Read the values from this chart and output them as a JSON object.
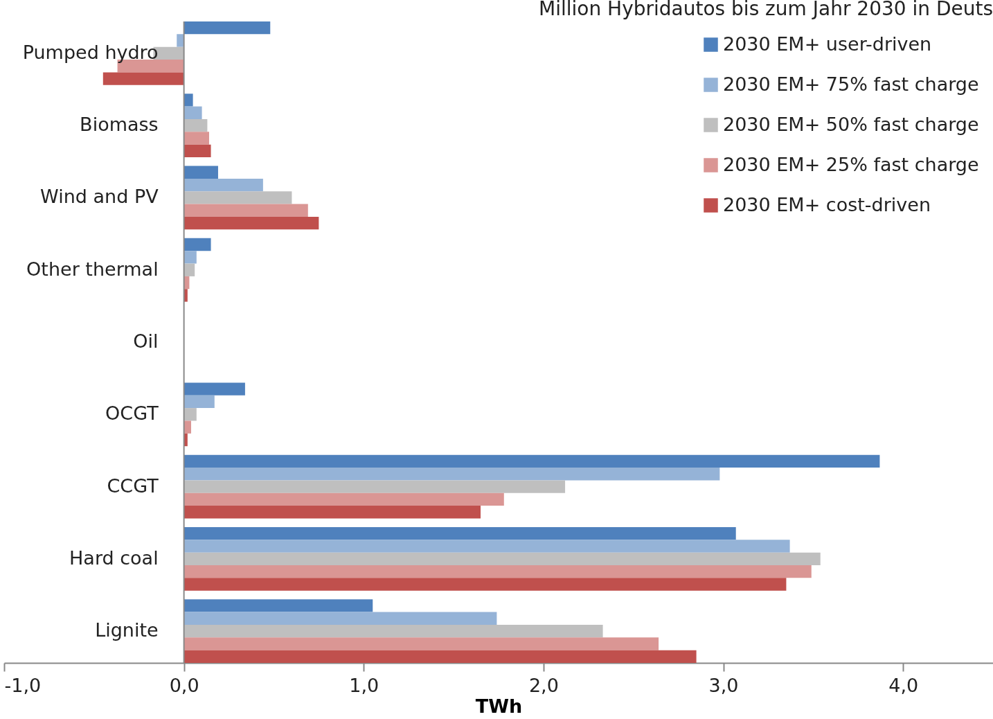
{
  "chart_data": {
    "type": "bar",
    "orientation": "horizontal",
    "title": "Million Hybridautos bis zum Jahr 2030 in Deuts",
    "xlabel": "TWh",
    "categories": [
      "Pumped hydro",
      "Biomass",
      "Wind and PV",
      "Other thermal",
      "Oil",
      "OCGT",
      "CCGT",
      "Hard coal",
      "Lignite"
    ],
    "series": [
      {
        "name": "2030 EM+ user-driven",
        "color": "#4f81bd",
        "values": [
          0.48,
          0.05,
          0.19,
          0.15,
          0,
          0.34,
          3.87,
          3.07,
          1.05
        ]
      },
      {
        "name": "2030 EM+ 75% fast charge",
        "color": "#95b3d7",
        "values": [
          -0.04,
          0.1,
          0.44,
          0.07,
          0,
          0.17,
          2.98,
          3.37,
          1.74
        ]
      },
      {
        "name": "2030 EM+ 50% fast charge",
        "color": "#bfbfbf",
        "values": [
          -0.17,
          0.13,
          0.6,
          0.06,
          0,
          0.07,
          2.12,
          3.54,
          2.33
        ]
      },
      {
        "name": "2030 EM+ 25% fast charge",
        "color": "#da9694",
        "values": [
          -0.37,
          0.14,
          0.69,
          0.03,
          0,
          0.04,
          1.78,
          3.49,
          2.64
        ]
      },
      {
        "name": "2030 EM+ cost-driven",
        "color": "#c0504d",
        "values": [
          -0.45,
          0.15,
          0.75,
          0.02,
          0,
          0.02,
          1.65,
          3.35,
          2.85
        ]
      }
    ],
    "xlim": [
      -1.0,
      4.5
    ],
    "xticks": [
      {
        "value": -1,
        "label": "-1,0"
      },
      {
        "value": 0,
        "label": "0,0"
      },
      {
        "value": 1,
        "label": "1,0"
      },
      {
        "value": 2,
        "label": "2,0"
      },
      {
        "value": 3,
        "label": "3,0"
      },
      {
        "value": 4,
        "label": "4,0"
      }
    ],
    "legend": "top right"
  }
}
